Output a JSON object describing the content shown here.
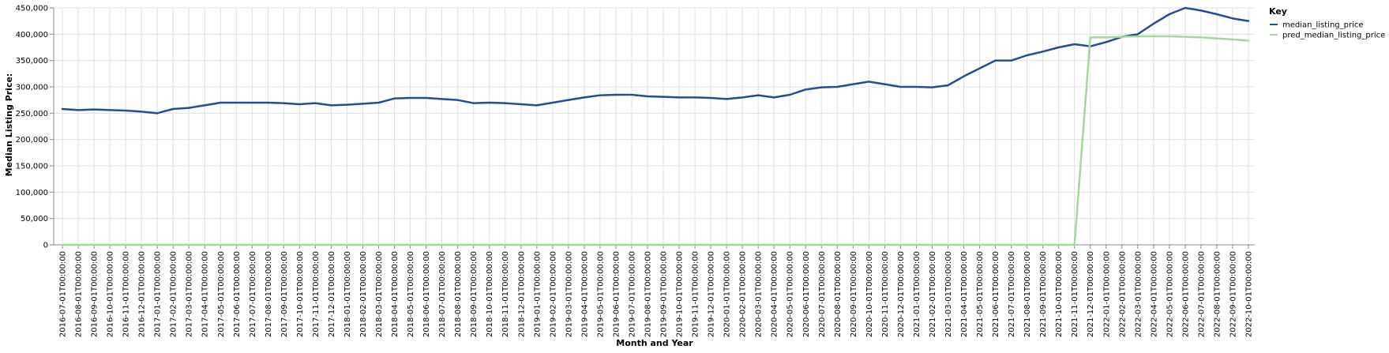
{
  "chart_data": {
    "type": "line",
    "xlabel": "Month and Year",
    "ylabel": "Median Listing Price:",
    "ylim": [
      0,
      450000
    ],
    "yticks": [
      "0",
      "50,000",
      "100,000",
      "150,000",
      "200,000",
      "250,000",
      "300,000",
      "350,000",
      "400,000",
      "450,000"
    ],
    "grid": true,
    "legend": {
      "title": "Key",
      "position": "top-right"
    },
    "x": [
      "2016-07-01T00:00:00",
      "2016-08-01T00:00:00",
      "2016-09-01T00:00:00",
      "2016-10-01T00:00:00",
      "2016-11-01T00:00:00",
      "2016-12-01T00:00:00",
      "2017-01-01T00:00:00",
      "2017-02-01T00:00:00",
      "2017-03-01T00:00:00",
      "2017-04-01T00:00:00",
      "2017-05-01T00:00:00",
      "2017-06-01T00:00:00",
      "2017-07-01T00:00:00",
      "2017-08-01T00:00:00",
      "2017-09-01T00:00:00",
      "2017-10-01T00:00:00",
      "2017-11-01T00:00:00",
      "2017-12-01T00:00:00",
      "2018-01-01T00:00:00",
      "2018-02-01T00:00:00",
      "2018-03-01T00:00:00",
      "2018-04-01T00:00:00",
      "2018-05-01T00:00:00",
      "2018-06-01T00:00:00",
      "2018-07-01T00:00:00",
      "2018-08-01T00:00:00",
      "2018-09-01T00:00:00",
      "2018-10-01T00:00:00",
      "2018-11-01T00:00:00",
      "2018-12-01T00:00:00",
      "2019-01-01T00:00:00",
      "2019-02-01T00:00:00",
      "2019-03-01T00:00:00",
      "2019-04-01T00:00:00",
      "2019-05-01T00:00:00",
      "2019-06-01T00:00:00",
      "2019-07-01T00:00:00",
      "2019-08-01T00:00:00",
      "2019-09-01T00:00:00",
      "2019-10-01T00:00:00",
      "2019-11-01T00:00:00",
      "2019-12-01T00:00:00",
      "2020-01-01T00:00:00",
      "2020-02-01T00:00:00",
      "2020-03-01T00:00:00",
      "2020-04-01T00:00:00",
      "2020-05-01T00:00:00",
      "2020-06-01T00:00:00",
      "2020-07-01T00:00:00",
      "2020-08-01T00:00:00",
      "2020-09-01T00:00:00",
      "2020-10-01T00:00:00",
      "2020-11-01T00:00:00",
      "2020-12-01T00:00:00",
      "2021-01-01T00:00:00",
      "2021-02-01T00:00:00",
      "2021-03-01T00:00:00",
      "2021-04-01T00:00:00",
      "2021-05-01T00:00:00",
      "2021-06-01T00:00:00",
      "2021-07-01T00:00:00",
      "2021-08-01T00:00:00",
      "2021-09-01T00:00:00",
      "2021-10-01T00:00:00",
      "2021-11-01T00:00:00",
      "2021-12-01T00:00:00",
      "2022-01-01T00:00:00",
      "2022-02-01T00:00:00",
      "2022-03-01T00:00:00",
      "2022-04-01T00:00:00",
      "2022-05-01T00:00:00",
      "2022-06-01T00:00:00",
      "2022-07-01T00:00:00",
      "2022-08-01T00:00:00",
      "2022-09-01T00:00:00",
      "2022-10-01T00:00:00"
    ],
    "series": [
      {
        "name": "median_listing_price",
        "color": "#1f4e9a",
        "values": [
          258000,
          256000,
          257000,
          256000,
          255000,
          253000,
          250000,
          258000,
          260000,
          265000,
          270000,
          270000,
          270000,
          270000,
          269000,
          267000,
          269000,
          265000,
          266000,
          268000,
          270000,
          278000,
          279000,
          279000,
          277000,
          275000,
          269000,
          270000,
          269000,
          267000,
          265000,
          270000,
          275000,
          280000,
          284000,
          285000,
          285000,
          282000,
          281000,
          280000,
          280000,
          279000,
          277000,
          280000,
          284000,
          280000,
          285000,
          295000,
          299000,
          300000,
          305000,
          310000,
          305000,
          300000,
          300000,
          299000,
          303000,
          320000,
          335000,
          350000,
          350000,
          360000,
          367000,
          375000,
          381000,
          377000,
          385000,
          395000,
          400000,
          420000,
          438000,
          450000,
          445000,
          438000,
          430000,
          425000
        ]
      },
      {
        "name": "pred_median_listing_price",
        "color": "#a1d99b",
        "values": [
          0,
          0,
          0,
          0,
          0,
          0,
          0,
          0,
          0,
          0,
          0,
          0,
          0,
          0,
          0,
          0,
          0,
          0,
          0,
          0,
          0,
          0,
          0,
          0,
          0,
          0,
          0,
          0,
          0,
          0,
          0,
          0,
          0,
          0,
          0,
          0,
          0,
          0,
          0,
          0,
          0,
          0,
          0,
          0,
          0,
          0,
          0,
          0,
          0,
          0,
          0,
          0,
          0,
          0,
          0,
          0,
          0,
          0,
          0,
          0,
          0,
          0,
          0,
          0,
          0,
          394000,
          394000,
          395000,
          396000,
          396000,
          396000,
          395000,
          394000,
          392000,
          390000,
          388000
        ]
      }
    ]
  }
}
